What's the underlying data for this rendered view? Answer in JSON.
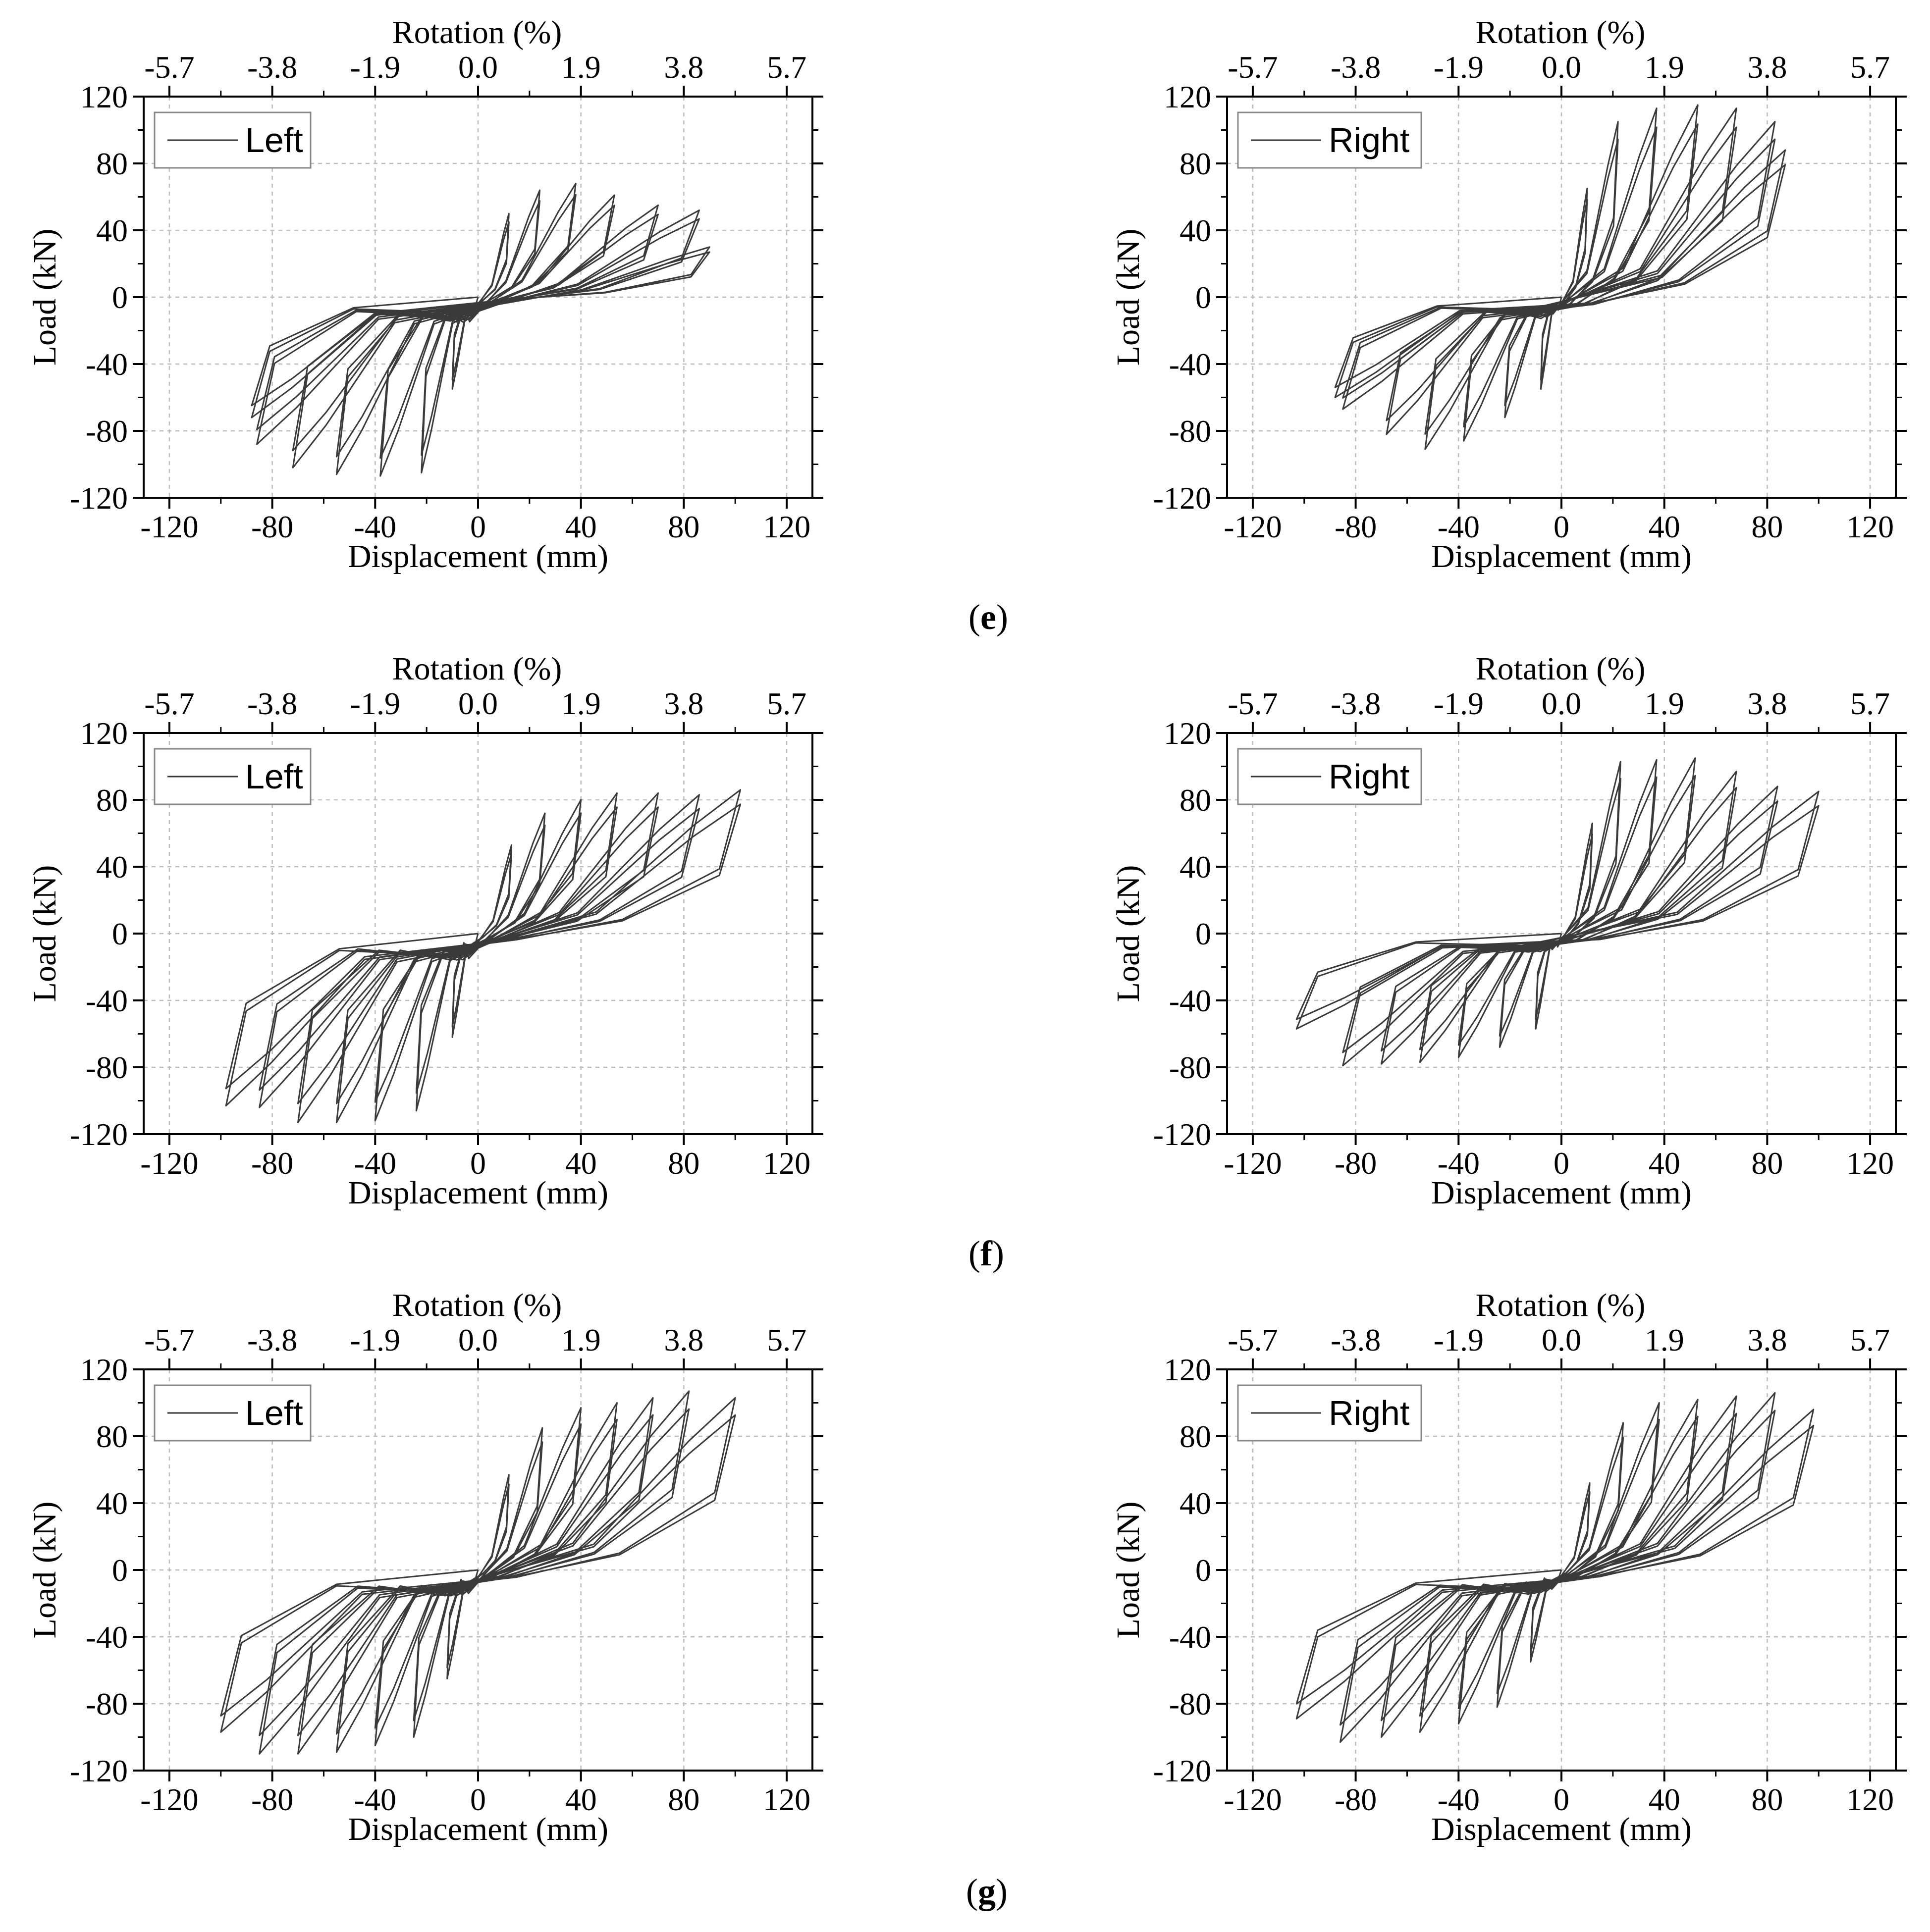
{
  "figure": {
    "row_labels": [
      {
        "open": "(",
        "letter": "e",
        "close": ")"
      },
      {
        "open": "(",
        "letter": "f",
        "close": ")"
      },
      {
        "open": "(",
        "letter": "g",
        "close": ")"
      }
    ]
  },
  "chart_data": [
    {
      "id": "e-left",
      "type": "line",
      "legend": "Left",
      "xlabel": "Displacement (mm)",
      "ylabel": "Load (kN)",
      "x2label": "Rotation (%)",
      "xlim": [
        -130,
        130
      ],
      "ylim": [
        -120,
        120
      ],
      "xticks": [
        -120,
        -80,
        -40,
        0,
        40,
        80,
        120
      ],
      "yticks": [
        -120,
        -80,
        -40,
        0,
        40,
        80,
        120
      ],
      "x2ticks": [
        "-5.7",
        "-3.8",
        "-1.9",
        "0.0",
        "1.9",
        "3.8",
        "5.7"
      ],
      "cycles": [
        {
          "dp": 12,
          "fp": 50,
          "dn": -10,
          "fn": -55
        },
        {
          "dp": 24,
          "fp": 64,
          "dn": -22,
          "fn": -105
        },
        {
          "dp": 38,
          "fp": 68,
          "dn": -38,
          "fn": -107
        },
        {
          "dp": 53,
          "fp": 61,
          "dn": -55,
          "fn": -106
        },
        {
          "dp": 70,
          "fp": 55,
          "dn": -72,
          "fn": -102
        },
        {
          "dp": 86,
          "fp": 52,
          "dn": -86,
          "fn": -88
        },
        {
          "dp": 90,
          "fp": 30,
          "dn": -88,
          "fn": -72
        }
      ]
    },
    {
      "id": "e-right",
      "type": "line",
      "legend": "Right",
      "xlabel": "Displacement (mm)",
      "ylabel": "Load (kN)",
      "x2label": "Rotation (%)",
      "xlim": [
        -130,
        130
      ],
      "ylim": [
        -120,
        120
      ],
      "xticks": [
        -120,
        -80,
        -40,
        0,
        40,
        80,
        120
      ],
      "yticks": [
        -120,
        -80,
        -40,
        0,
        40,
        80,
        120
      ],
      "x2ticks": [
        "-5.7",
        "-3.8",
        "-1.9",
        "0.0",
        "1.9",
        "3.8",
        "5.7"
      ],
      "cycles": [
        {
          "dp": 10,
          "fp": 65,
          "dn": -8,
          "fn": -55
        },
        {
          "dp": 22,
          "fp": 105,
          "dn": -22,
          "fn": -72
        },
        {
          "dp": 37,
          "fp": 113,
          "dn": -38,
          "fn": -86
        },
        {
          "dp": 53,
          "fp": 115,
          "dn": -53,
          "fn": -91
        },
        {
          "dp": 68,
          "fp": 113,
          "dn": -68,
          "fn": -82
        },
        {
          "dp": 83,
          "fp": 105,
          "dn": -85,
          "fn": -67
        },
        {
          "dp": 87,
          "fp": 88,
          "dn": -88,
          "fn": -60
        }
      ]
    },
    {
      "id": "f-left",
      "type": "line",
      "legend": "Left",
      "xlabel": "Displacement (mm)",
      "ylabel": "Load (kN)",
      "x2label": "Rotation (%)",
      "xlim": [
        -130,
        130
      ],
      "ylim": [
        -120,
        120
      ],
      "xticks": [
        -120,
        -80,
        -40,
        0,
        40,
        80,
        120
      ],
      "yticks": [
        -120,
        -80,
        -40,
        0,
        40,
        80,
        120
      ],
      "x2ticks": [
        "-5.7",
        "-3.8",
        "-1.9",
        "0.0",
        "1.9",
        "3.8",
        "5.7"
      ],
      "cycles": [
        {
          "dp": 13,
          "fp": 53,
          "dn": -10,
          "fn": -62
        },
        {
          "dp": 26,
          "fp": 72,
          "dn": -24,
          "fn": -106
        },
        {
          "dp": 40,
          "fp": 80,
          "dn": -40,
          "fn": -112
        },
        {
          "dp": 54,
          "fp": 84,
          "dn": -55,
          "fn": -113
        },
        {
          "dp": 70,
          "fp": 84,
          "dn": -70,
          "fn": -113
        },
        {
          "dp": 86,
          "fp": 83,
          "dn": -85,
          "fn": -104
        },
        {
          "dp": 102,
          "fp": 86,
          "dn": -98,
          "fn": -103
        }
      ]
    },
    {
      "id": "f-right",
      "type": "line",
      "legend": "Right",
      "xlabel": "Displacement (mm)",
      "ylabel": "Load (kN)",
      "x2label": "Rotation (%)",
      "xlim": [
        -130,
        130
      ],
      "ylim": [
        -120,
        120
      ],
      "xticks": [
        -120,
        -80,
        -40,
        0,
        40,
        80,
        120
      ],
      "yticks": [
        -120,
        -80,
        -40,
        0,
        40,
        80,
        120
      ],
      "x2ticks": [
        "-5.7",
        "-3.8",
        "-1.9",
        "0.0",
        "1.9",
        "3.8",
        "5.7"
      ],
      "cycles": [
        {
          "dp": 12,
          "fp": 66,
          "dn": -10,
          "fn": -57
        },
        {
          "dp": 23,
          "fp": 103,
          "dn": -24,
          "fn": -68
        },
        {
          "dp": 37,
          "fp": 104,
          "dn": -40,
          "fn": -74
        },
        {
          "dp": 52,
          "fp": 105,
          "dn": -55,
          "fn": -77
        },
        {
          "dp": 68,
          "fp": 97,
          "dn": -70,
          "fn": -78
        },
        {
          "dp": 84,
          "fp": 88,
          "dn": -85,
          "fn": -79
        },
        {
          "dp": 100,
          "fp": 85,
          "dn": -103,
          "fn": -57
        }
      ]
    },
    {
      "id": "g-left",
      "type": "line",
      "legend": "Left",
      "xlabel": "Displacement (mm)",
      "ylabel": "Load (kN)",
      "x2label": "Rotation (%)",
      "xlim": [
        -130,
        130
      ],
      "ylim": [
        -120,
        120
      ],
      "xticks": [
        -120,
        -80,
        -40,
        0,
        40,
        80,
        120
      ],
      "yticks": [
        -120,
        -80,
        -40,
        0,
        40,
        80,
        120
      ],
      "x2ticks": [
        "-5.7",
        "-3.8",
        "-1.9",
        "0.0",
        "1.9",
        "3.8",
        "5.7"
      ],
      "cycles": [
        {
          "dp": 12,
          "fp": 57,
          "dn": -12,
          "fn": -65
        },
        {
          "dp": 25,
          "fp": 85,
          "dn": -25,
          "fn": -100
        },
        {
          "dp": 40,
          "fp": 97,
          "dn": -40,
          "fn": -105
        },
        {
          "dp": 54,
          "fp": 100,
          "dn": -55,
          "fn": -109
        },
        {
          "dp": 68,
          "fp": 103,
          "dn": -70,
          "fn": -110
        },
        {
          "dp": 82,
          "fp": 107,
          "dn": -85,
          "fn": -110
        },
        {
          "dp": 100,
          "fp": 103,
          "dn": -100,
          "fn": -97
        }
      ]
    },
    {
      "id": "g-right",
      "type": "line",
      "legend": "Right",
      "xlabel": "Displacement (mm)",
      "ylabel": "Load (kN)",
      "x2label": "Rotation (%)",
      "xlim": [
        -130,
        130
      ],
      "ylim": [
        -120,
        120
      ],
      "xticks": [
        -120,
        -80,
        -40,
        0,
        40,
        80,
        120
      ],
      "yticks": [
        -120,
        -80,
        -40,
        0,
        40,
        80,
        120
      ],
      "x2ticks": [
        "-5.7",
        "-3.8",
        "-1.9",
        "0.0",
        "1.9",
        "3.8",
        "5.7"
      ],
      "cycles": [
        {
          "dp": 11,
          "fp": 52,
          "dn": -12,
          "fn": -55
        },
        {
          "dp": 24,
          "fp": 88,
          "dn": -25,
          "fn": -82
        },
        {
          "dp": 38,
          "fp": 100,
          "dn": -40,
          "fn": -92
        },
        {
          "dp": 53,
          "fp": 102,
          "dn": -55,
          "fn": -97
        },
        {
          "dp": 68,
          "fp": 104,
          "dn": -70,
          "fn": -100
        },
        {
          "dp": 83,
          "fp": 106,
          "dn": -86,
          "fn": -103
        },
        {
          "dp": 98,
          "fp": 96,
          "dn": -103,
          "fn": -89
        }
      ]
    }
  ]
}
